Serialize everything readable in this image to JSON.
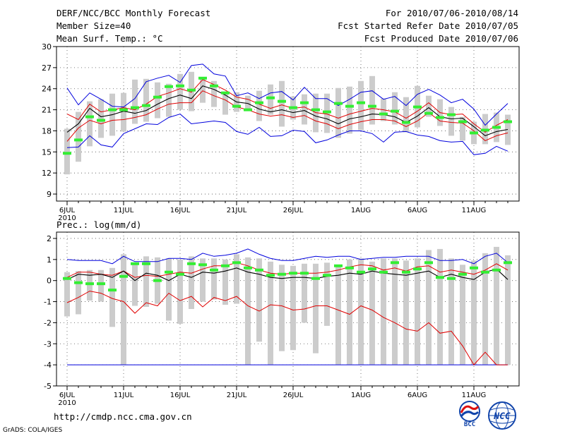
{
  "header": {
    "title": "DERF/NCC/BCC Monthly Forecast",
    "member_size": "Member Size=40",
    "variable": "Mean Surf. Temp.: °C",
    "period": "For 2010/07/06-2010/08/14",
    "started": "Fcst Started Refer Date 2010/07/05",
    "produced": "Fcst Produced Date 2010/07/06"
  },
  "footer": {
    "url": "http://cmdp.ncc.cma.gov.cn",
    "credit": "GrADS: COLA/IGES",
    "logo_bcc": "BCC",
    "logo_ncc": "NCC"
  },
  "colors": {
    "mean": "#000000",
    "spread": "#e00000",
    "range": "#0000dd",
    "median": "#33ee33",
    "box": "#cccccc"
  },
  "chart_data": [
    {
      "type": "line",
      "title": "Mean Surf. Temp.: °C",
      "x_tick_labels": [
        "6JUL",
        "11JUL",
        "16JUL",
        "21JUL",
        "26JUL",
        "1AUG",
        "6AUG",
        "11AUG"
      ],
      "x_tick_days": [
        1,
        6,
        11,
        16,
        21,
        27,
        32,
        37
      ],
      "x_year_label": "2010",
      "ylim": [
        8,
        30
      ],
      "yticks": [
        9,
        12,
        15,
        18,
        21,
        24,
        27,
        30
      ],
      "days": [
        1,
        2,
        3,
        4,
        5,
        6,
        7,
        8,
        9,
        10,
        11,
        12,
        13,
        14,
        15,
        16,
        17,
        18,
        19,
        20,
        21,
        22,
        23,
        24,
        25,
        26,
        27,
        28,
        29,
        30,
        31,
        32,
        33,
        34,
        35,
        36,
        37,
        38,
        39,
        40
      ],
      "mean": [
        17.8,
        19.0,
        21.2,
        20.0,
        20.3,
        20.8,
        20.5,
        20.9,
        21.8,
        22.6,
        23.1,
        22.6,
        24.4,
        23.9,
        23.1,
        22.1,
        21.9,
        21.1,
        20.7,
        21.0,
        20.6,
        20.9,
        20.1,
        19.7,
        19.0,
        19.7,
        20.0,
        20.4,
        20.3,
        20.0,
        19.2,
        20.1,
        21.3,
        20.0,
        19.7,
        19.8,
        18.6,
        17.3,
        17.9,
        18.2
      ],
      "plus_sd": [
        20.4,
        19.6,
        21.8,
        20.7,
        21.0,
        21.3,
        21.0,
        21.8,
        22.9,
        23.4,
        24.0,
        23.5,
        25.3,
        24.6,
        23.8,
        22.8,
        22.5,
        21.8,
        21.2,
        21.7,
        21.2,
        21.4,
        20.6,
        20.4,
        19.8,
        20.4,
        20.8,
        21.2,
        21.0,
        20.7,
        19.8,
        20.8,
        22.0,
        20.6,
        20.3,
        20.4,
        19.0,
        17.8,
        18.8,
        19.6
      ],
      "minus_sd": [
        16.5,
        18.4,
        19.5,
        19.0,
        19.5,
        19.6,
        19.9,
        20.3,
        21.1,
        21.8,
        22.0,
        22.0,
        23.7,
        23.0,
        22.4,
        21.4,
        21.0,
        20.4,
        20.1,
        20.3,
        19.9,
        20.2,
        19.4,
        19.0,
        18.3,
        18.9,
        19.3,
        19.6,
        19.6,
        19.4,
        18.6,
        19.4,
        20.6,
        19.4,
        19.2,
        19.1,
        18.0,
        16.6,
        17.3,
        17.7
      ],
      "maximum": [
        24.1,
        21.7,
        23.4,
        22.5,
        21.5,
        21.4,
        22.6,
        25.0,
        25.5,
        25.9,
        24.9,
        27.3,
        27.5,
        26.1,
        25.8,
        23.0,
        23.4,
        22.6,
        23.4,
        23.6,
        22.4,
        24.2,
        22.6,
        22.6,
        21.6,
        22.5,
        23.5,
        23.7,
        22.5,
        22.9,
        21.6,
        23.2,
        23.9,
        23.1,
        22.0,
        22.5,
        21.1,
        18.8,
        20.4,
        21.9
      ],
      "minimum": [
        15.6,
        15.7,
        17.3,
        16.0,
        15.7,
        17.6,
        18.3,
        19.0,
        18.9,
        19.9,
        20.4,
        19.0,
        19.2,
        19.4,
        19.2,
        17.9,
        17.5,
        18.5,
        17.2,
        17.3,
        18.1,
        17.9,
        16.3,
        16.7,
        17.4,
        18.0,
        18.0,
        17.6,
        16.4,
        17.8,
        17.9,
        17.4,
        17.2,
        16.6,
        16.4,
        16.5,
        14.6,
        14.8,
        15.8,
        15.1
      ],
      "box_low": [
        11.8,
        13.6,
        15.8,
        17.0,
        17.3,
        17.9,
        19.0,
        19.3,
        19.8,
        20.0,
        21.0,
        20.8,
        22.0,
        21.4,
        20.3,
        20.7,
        20.8,
        19.4,
        20.3,
        18.6,
        19.6,
        18.9,
        17.8,
        17.7,
        17.0,
        17.6,
        18.1,
        18.9,
        19.4,
        18.9,
        17.8,
        18.5,
        20.0,
        18.7,
        17.3,
        16.6,
        16.1,
        16.1,
        16.4,
        16.0
      ],
      "box_high": [
        18.3,
        20.7,
        22.2,
        22.5,
        23.3,
        23.4,
        25.3,
        25.4,
        24.9,
        24.7,
        26.1,
        26.4,
        25.5,
        25.1,
        23.6,
        23.5,
        23.0,
        23.7,
        24.6,
        25.1,
        22.9,
        23.2,
        23.3,
        23.3,
        24.1,
        24.3,
        25.1,
        25.8,
        22.6,
        23.5,
        22.8,
        24.4,
        23.0,
        22.5,
        21.4,
        20.0,
        19.3,
        20.4,
        20.6,
        20.3
      ],
      "median": [
        14.8,
        16.7,
        20.0,
        19.5,
        21.0,
        21.0,
        21.3,
        21.6,
        22.8,
        24.3,
        24.4,
        23.8,
        25.5,
        24.4,
        23.4,
        21.5,
        21.0,
        22.0,
        22.7,
        22.2,
        21.3,
        22.0,
        21.0,
        20.7,
        21.9,
        21.5,
        22.0,
        21.5,
        20.4,
        20.8,
        19.2,
        21.4,
        20.5,
        19.9,
        20.3,
        19.3,
        17.7,
        18.1,
        18.5,
        19.3
      ]
    },
    {
      "type": "line",
      "title": "Prec.: log(mm/d)",
      "x_tick_labels": [
        "6JUL",
        "11JUL",
        "16JUL",
        "21JUL",
        "26JUL",
        "1AUG",
        "6AUG",
        "11AUG"
      ],
      "x_tick_days": [
        1,
        6,
        11,
        16,
        21,
        27,
        32,
        37
      ],
      "x_year_label": "2010",
      "ylim": [
        -5,
        2.3
      ],
      "yticks": [
        -5,
        -4,
        -3,
        -2,
        -1,
        0,
        1,
        2
      ],
      "days": [
        1,
        2,
        3,
        4,
        5,
        6,
        7,
        8,
        9,
        10,
        11,
        12,
        13,
        14,
        15,
        16,
        17,
        18,
        19,
        20,
        21,
        22,
        23,
        24,
        25,
        26,
        27,
        28,
        29,
        30,
        31,
        32,
        33,
        34,
        35,
        36,
        37,
        38,
        39,
        40
      ],
      "mean": [
        0.05,
        0.3,
        0.25,
        0.3,
        0.15,
        0.45,
        0.0,
        0.35,
        0.25,
        0.0,
        0.3,
        0.15,
        0.4,
        0.35,
        0.45,
        0.6,
        0.4,
        0.3,
        0.15,
        0.1,
        0.15,
        0.15,
        0.1,
        0.2,
        0.25,
        0.35,
        0.3,
        0.45,
        0.35,
        0.3,
        0.25,
        0.35,
        0.45,
        0.15,
        0.3,
        0.15,
        0.05,
        0.4,
        0.55,
        0.05
      ],
      "plus_sd": [
        0.15,
        0.4,
        0.4,
        0.3,
        0.25,
        0.45,
        0.15,
        0.25,
        0.2,
        0.3,
        0.4,
        0.35,
        0.55,
        0.7,
        0.7,
        0.85,
        0.7,
        0.5,
        0.35,
        0.3,
        0.35,
        0.35,
        0.35,
        0.4,
        0.5,
        0.65,
        0.75,
        0.7,
        0.5,
        0.6,
        0.45,
        0.65,
        0.7,
        0.4,
        0.5,
        0.4,
        0.3,
        0.5,
        0.8,
        0.5
      ],
      "minus_sd": [
        -1.05,
        -0.8,
        -0.5,
        -0.6,
        -0.85,
        -1.0,
        -1.55,
        -1.05,
        -1.2,
        -0.6,
        -0.95,
        -0.75,
        -1.25,
        -0.8,
        -0.95,
        -0.75,
        -1.2,
        -1.45,
        -1.15,
        -1.2,
        -1.4,
        -1.35,
        -1.2,
        -1.2,
        -1.4,
        -1.6,
        -1.2,
        -1.4,
        -1.75,
        -2.0,
        -2.3,
        -2.4,
        -2.0,
        -2.5,
        -2.4,
        -3.1,
        -4.0,
        -3.4,
        -4.0,
        -4.0
      ],
      "maximum": [
        1.0,
        0.95,
        0.95,
        0.95,
        0.8,
        1.15,
        0.9,
        0.9,
        0.9,
        1.05,
        1.05,
        1.0,
        1.3,
        1.15,
        1.2,
        1.3,
        1.5,
        1.25,
        1.05,
        0.95,
        0.95,
        1.05,
        1.15,
        1.1,
        1.15,
        1.15,
        1.0,
        1.05,
        1.1,
        1.1,
        1.15,
        1.15,
        1.15,
        0.95,
        0.95,
        1.0,
        0.8,
        1.15,
        1.3,
        0.85
      ],
      "minimum": [
        -4.0,
        -4.0,
        -4.0,
        -4.0,
        -4.0,
        -4.0,
        -4.0,
        -4.0,
        -4.0,
        -4.0,
        -4.0,
        -4.0,
        -4.0,
        -4.0,
        -4.0,
        -4.0,
        -4.0,
        -4.0,
        -4.0,
        -4.0,
        -4.0,
        -4.0,
        -4.0,
        -4.0,
        -4.0,
        -4.0,
        -4.0,
        -4.0,
        -4.0,
        -4.0,
        -4.0,
        -4.0,
        -4.0,
        -4.0,
        -4.0,
        -4.0,
        -4.0,
        -4.0,
        -4.0,
        -4.0
      ],
      "box_low": [
        -1.7,
        -1.6,
        -0.95,
        -1.0,
        -2.2,
        -4.0,
        -1.2,
        -1.25,
        -1.1,
        -1.9,
        -2.05,
        -1.35,
        -1.0,
        -0.9,
        -1.15,
        -1.1,
        -4.0,
        -2.9,
        -4.0,
        -3.35,
        -3.3,
        -2.0,
        -3.45,
        -2.15,
        -4.0,
        -4.0,
        -4.0,
        -4.0,
        -4.0,
        -4.0,
        -4.0,
        -4.0,
        -4.0,
        -4.0,
        -4.0,
        -4.0,
        -4.0,
        -4.0,
        -4.0,
        -4.0
      ],
      "box_high": [
        0.4,
        0.45,
        0.5,
        0.5,
        0.6,
        1.25,
        0.8,
        1.15,
        1.1,
        1.05,
        1.0,
        1.15,
        1.05,
        1.05,
        1.0,
        1.25,
        1.1,
        1.05,
        0.9,
        0.75,
        0.7,
        0.8,
        0.8,
        0.85,
        0.7,
        1.0,
        1.05,
        0.9,
        1.05,
        1.05,
        0.95,
        1.05,
        1.45,
        1.5,
        1.05,
        0.75,
        0.95,
        1.3,
        1.6,
        1.2
      ],
      "median": [
        0.1,
        -0.1,
        -0.15,
        -0.15,
        -0.45,
        0.2,
        0.8,
        0.8,
        0.0,
        0.4,
        0.3,
        0.8,
        0.75,
        0.5,
        0.7,
        0.85,
        0.6,
        0.5,
        0.25,
        0.3,
        0.35,
        0.35,
        0.1,
        0.25,
        0.7,
        0.6,
        0.4,
        0.55,
        0.4,
        0.85,
        0.4,
        0.55,
        0.85,
        0.15,
        0.1,
        0.3,
        0.6,
        0.4,
        0.5,
        0.85
      ]
    }
  ]
}
